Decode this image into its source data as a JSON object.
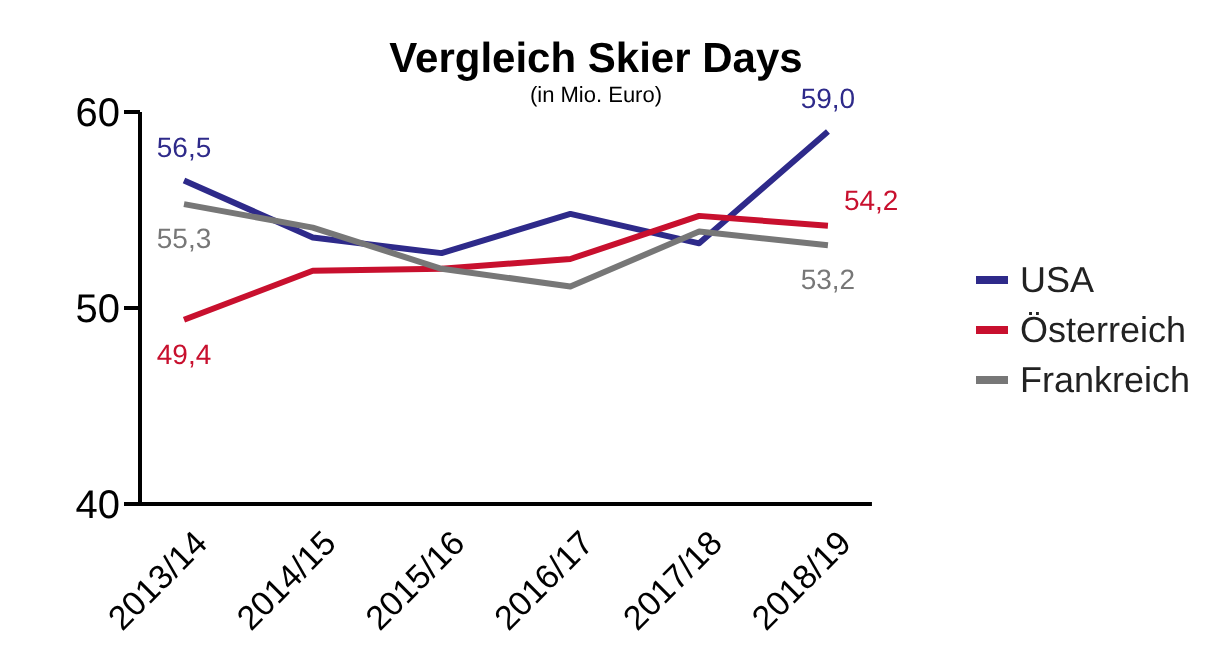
{
  "chart_data": {
    "type": "line",
    "title": "Vergleich Skier Days",
    "subtitle": "(in Mio. Euro)",
    "categories": [
      "2013/14",
      "2014/15",
      "2015/16",
      "2016/17",
      "2017/18",
      "2018/19"
    ],
    "series": [
      {
        "name": "USA",
        "color": "#2e2a8a",
        "values": [
          56.5,
          53.6,
          52.8,
          54.8,
          53.3,
          59.0
        ],
        "value_labels": [
          "56,5",
          null,
          null,
          null,
          null,
          "59,0"
        ]
      },
      {
        "name": "Österreich",
        "color": "#c8102e",
        "values": [
          49.4,
          51.9,
          52.0,
          52.5,
          54.7,
          54.2
        ],
        "value_labels": [
          "49,4",
          null,
          null,
          null,
          null,
          "54,2"
        ]
      },
      {
        "name": "Frankreich",
        "color": "#777777",
        "values": [
          55.3,
          54.1,
          52.0,
          51.1,
          53.9,
          53.2
        ],
        "value_labels": [
          "55,3",
          null,
          null,
          null,
          null,
          "53,2"
        ]
      }
    ],
    "ylim": [
      40,
      60
    ],
    "yticks": [
      40,
      50,
      60
    ],
    "grid": false,
    "legend": "right",
    "marker": "none",
    "line_style": "solid"
  }
}
